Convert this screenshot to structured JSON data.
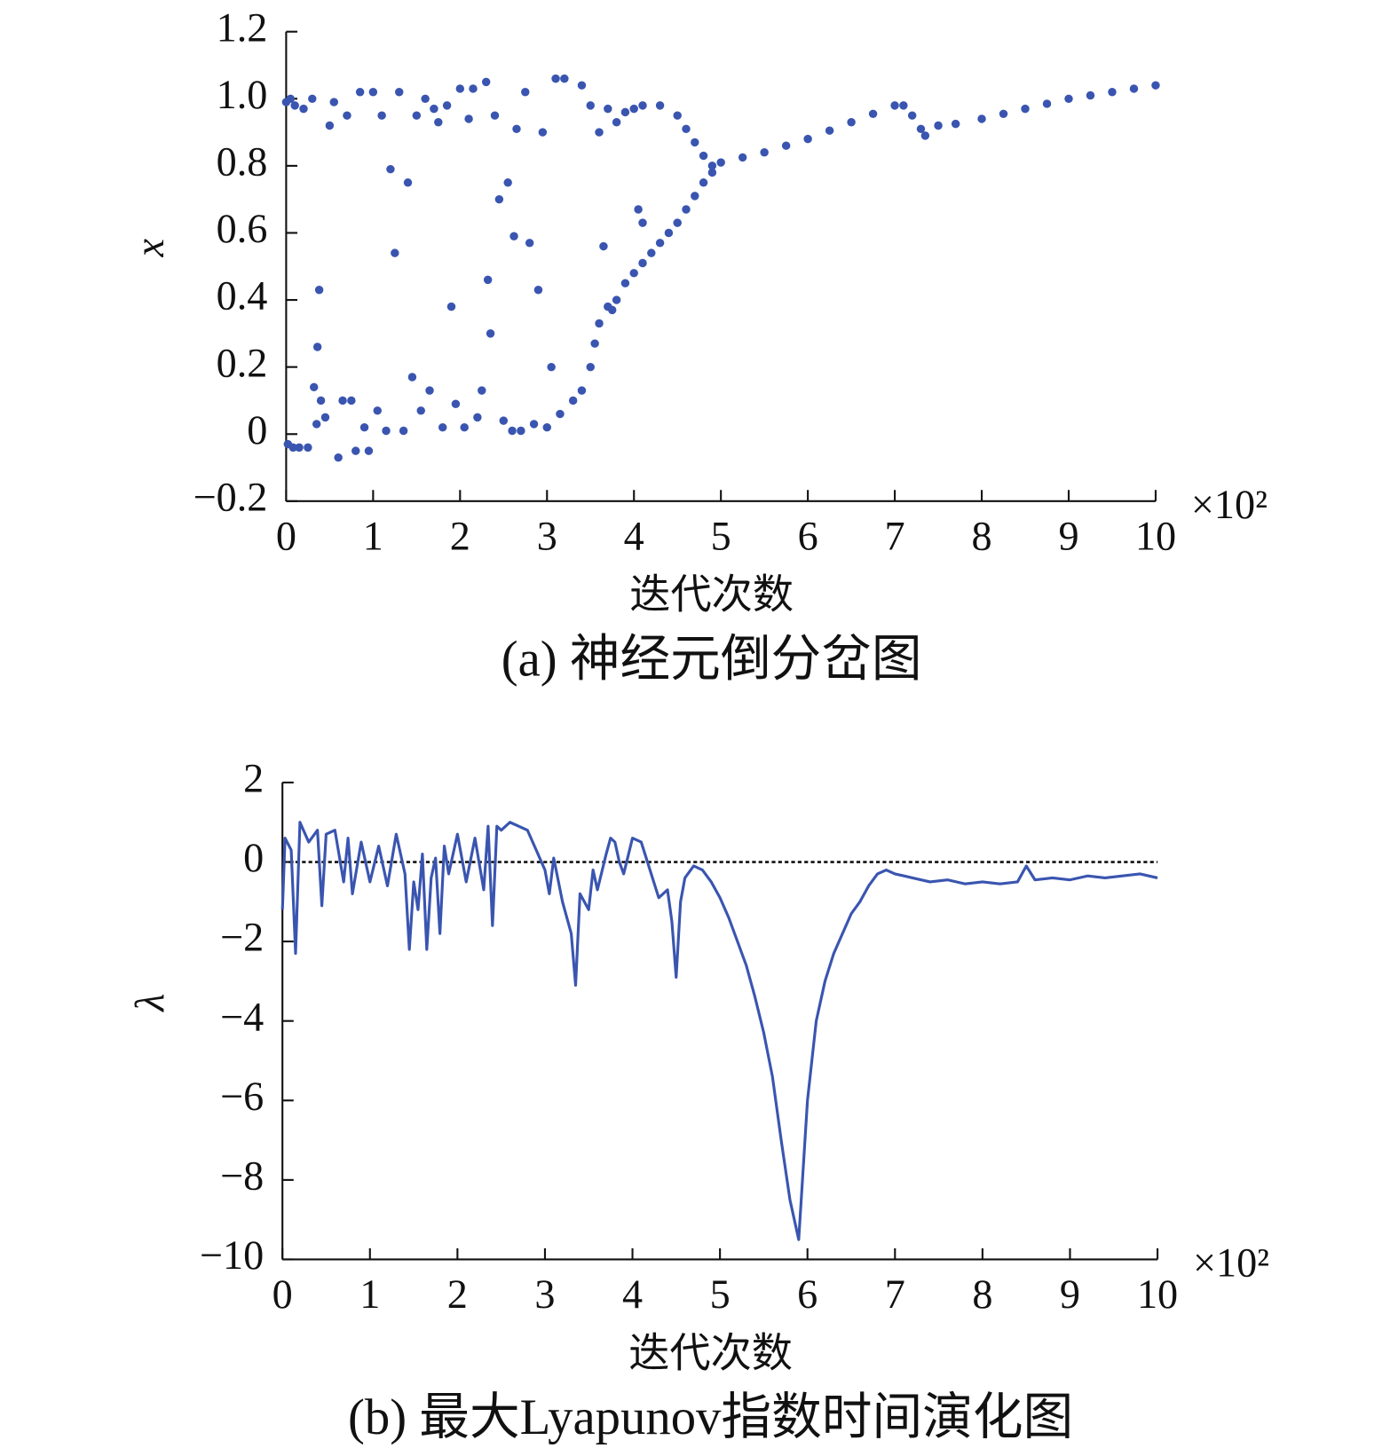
{
  "chart_data": [
    {
      "type": "scatter",
      "caption": "(a) 神经元倒分岔图",
      "xlabel": "迭代次数",
      "ylabel": "x",
      "x_multiplier": "×10²",
      "color": "#3a55b0",
      "x": [
        0,
        0.02,
        0.05,
        0.08,
        0.1,
        0.15,
        0.2,
        0.25,
        0.3,
        0.32,
        0.35,
        0.36,
        0.38,
        0.4,
        0.45,
        0.5,
        0.55,
        0.6,
        0.65,
        0.7,
        0.75,
        0.8,
        0.85,
        0.9,
        0.95,
        1.0,
        1.05,
        1.1,
        1.15,
        1.2,
        1.25,
        1.3,
        1.35,
        1.4,
        1.45,
        1.5,
        1.55,
        1.6,
        1.65,
        1.7,
        1.75,
        1.8,
        1.85,
        1.9,
        1.95,
        2.0,
        2.05,
        2.1,
        2.15,
        2.2,
        2.25,
        2.3,
        2.32,
        2.35,
        2.4,
        2.45,
        2.5,
        2.55,
        2.6,
        2.62,
        2.65,
        2.7,
        2.75,
        2.8,
        2.85,
        2.9,
        2.95,
        3.0,
        3.05,
        3.1,
        3.15,
        3.2,
        3.3,
        3.4,
        3.5,
        3.5,
        3.7,
        3.9,
        4.1,
        4.3,
        4.5,
        4.6,
        4.7,
        4.8,
        4.9,
        3.6,
        3.8,
        4.0,
        3.65,
        3.75,
        4.05,
        4.1,
        3.4,
        3.55,
        3.6,
        3.7,
        3.8,
        3.9,
        4.0,
        4.1,
        4.2,
        4.3,
        4.4,
        4.5,
        4.6,
        4.7,
        4.8,
        4.9,
        5.0,
        5.25,
        5.5,
        5.75,
        6.0,
        6.25,
        6.5,
        6.75,
        7.0,
        7.1,
        7.2,
        7.3,
        7.35,
        7.5,
        7.7,
        8.0,
        8.25,
        8.5,
        8.75,
        9.0,
        9.25,
        9.5,
        9.75,
        10.0
      ],
      "y": [
        0.99,
        -0.03,
        1.0,
        -0.04,
        0.98,
        -0.04,
        0.97,
        -0.04,
        1.0,
        0.14,
        0.03,
        0.26,
        0.43,
        0.1,
        0.05,
        0.92,
        0.99,
        -0.07,
        0.1,
        0.95,
        0.1,
        -0.05,
        1.02,
        0.02,
        -0.05,
        1.02,
        0.07,
        0.95,
        0.01,
        0.79,
        0.54,
        1.02,
        0.01,
        0.75,
        0.17,
        0.95,
        0.07,
        1.0,
        0.13,
        0.97,
        0.93,
        0.02,
        0.98,
        0.38,
        0.09,
        1.03,
        0.02,
        0.94,
        1.03,
        0.05,
        0.13,
        1.05,
        0.46,
        0.3,
        0.95,
        0.7,
        0.04,
        0.75,
        0.01,
        0.59,
        0.91,
        0.01,
        1.02,
        0.57,
        0.03,
        0.43,
        0.9,
        0.02,
        0.2,
        1.06,
        0.06,
        1.06,
        0.1,
        1.04,
        0.2,
        0.98,
        0.97,
        0.96,
        0.98,
        0.98,
        0.95,
        0.91,
        0.87,
        0.83,
        0.8,
        0.9,
        0.93,
        0.97,
        0.56,
        0.37,
        0.67,
        0.63,
        0.13,
        0.27,
        0.33,
        0.38,
        0.4,
        0.45,
        0.48,
        0.51,
        0.54,
        0.57,
        0.6,
        0.63,
        0.67,
        0.71,
        0.75,
        0.78,
        0.81,
        0.825,
        0.84,
        0.86,
        0.88,
        0.905,
        0.93,
        0.955,
        0.98,
        0.98,
        0.95,
        0.91,
        0.89,
        0.92,
        0.925,
        0.94,
        0.955,
        0.97,
        0.985,
        1.0,
        1.01,
        1.02,
        1.03,
        1.04
      ],
      "xlim": [
        0,
        10
      ],
      "xticks": [
        0,
        1,
        2,
        3,
        4,
        5,
        6,
        7,
        8,
        9,
        10
      ],
      "ylim": [
        -0.2,
        1.2
      ],
      "yticks": [
        {
          "value": -0.2,
          "label": "−0.2"
        },
        0,
        0.2,
        0.4,
        0.6,
        0.8,
        {
          "value": 1,
          "label": "1.0"
        },
        1.2
      ]
    },
    {
      "type": "line",
      "caption": "(b) 最大Lyapunov指数时间演化图",
      "xlabel": "迭代次数",
      "ylabel": "λ",
      "x_multiplier": "×10²",
      "color": "#3a55b0",
      "reference_line": 0,
      "x": [
        0,
        0.03,
        0.1,
        0.15,
        0.2,
        0.3,
        0.4,
        0.45,
        0.5,
        0.6,
        0.7,
        0.75,
        0.8,
        0.9,
        1.0,
        1.1,
        1.2,
        1.3,
        1.4,
        1.45,
        1.5,
        1.55,
        1.6,
        1.65,
        1.7,
        1.75,
        1.8,
        1.85,
        1.9,
        2.0,
        2.1,
        2.2,
        2.3,
        2.35,
        2.4,
        2.45,
        2.5,
        2.6,
        2.7,
        2.8,
        2.9,
        3.0,
        3.05,
        3.1,
        3.2,
        3.3,
        3.35,
        3.4,
        3.5,
        3.55,
        3.6,
        3.7,
        3.75,
        3.8,
        3.85,
        3.9,
        4.0,
        4.1,
        4.2,
        4.3,
        4.4,
        4.45,
        4.5,
        4.55,
        4.6,
        4.7,
        4.8,
        4.9,
        5.0,
        5.1,
        5.2,
        5.3,
        5.4,
        5.5,
        5.6,
        5.7,
        5.8,
        5.9,
        6.0,
        6.1,
        6.2,
        6.3,
        6.4,
        6.5,
        6.6,
        6.7,
        6.8,
        6.9,
        7.0,
        7.2,
        7.4,
        7.6,
        7.8,
        8.0,
        8.2,
        8.4,
        8.5,
        8.6,
        8.8,
        9.0,
        9.2,
        9.4,
        9.6,
        9.8,
        10.0
      ],
      "y": [
        -1.2,
        0.6,
        0.3,
        -2.3,
        1.0,
        0.5,
        0.8,
        -1.1,
        0.7,
        0.8,
        -0.5,
        0.6,
        -0.8,
        0.5,
        -0.5,
        0.4,
        -0.6,
        0.7,
        -0.3,
        -2.2,
        -0.5,
        -1.2,
        0.2,
        -2.2,
        -0.4,
        0.1,
        -1.8,
        0.4,
        -0.3,
        0.7,
        -0.5,
        0.6,
        -0.7,
        0.9,
        -1.6,
        0.9,
        0.8,
        1.0,
        0.9,
        0.8,
        0.3,
        -0.2,
        -0.8,
        0.1,
        -1.0,
        -1.8,
        -3.1,
        -0.8,
        -1.2,
        -0.2,
        -0.7,
        0.2,
        0.6,
        0.5,
        0.0,
        -0.3,
        0.6,
        0.5,
        -0.2,
        -0.9,
        -0.7,
        -1.5,
        -2.9,
        -1.0,
        -0.4,
        -0.1,
        -0.2,
        -0.5,
        -0.9,
        -1.4,
        -2.0,
        -2.6,
        -3.4,
        -4.3,
        -5.4,
        -7.0,
        -8.5,
        -9.5,
        -6.0,
        -4.0,
        -3.0,
        -2.3,
        -1.8,
        -1.3,
        -1.0,
        -0.6,
        -0.3,
        -0.2,
        -0.3,
        -0.4,
        -0.5,
        -0.45,
        -0.55,
        -0.5,
        -0.55,
        -0.5,
        -0.1,
        -0.45,
        -0.4,
        -0.45,
        -0.35,
        -0.4,
        -0.35,
        -0.3,
        -0.4
      ],
      "xlim": [
        0,
        10
      ],
      "xticks": [
        0,
        1,
        2,
        3,
        4,
        5,
        6,
        7,
        8,
        9,
        10
      ],
      "ylim": [
        -10,
        2
      ],
      "yticks": [
        {
          "value": -10,
          "label": "−10"
        },
        {
          "value": -8,
          "label": "−8"
        },
        {
          "value": -6,
          "label": "−6"
        },
        {
          "value": -4,
          "label": "−4"
        },
        {
          "value": -2,
          "label": "−2"
        },
        0,
        2
      ]
    }
  ]
}
